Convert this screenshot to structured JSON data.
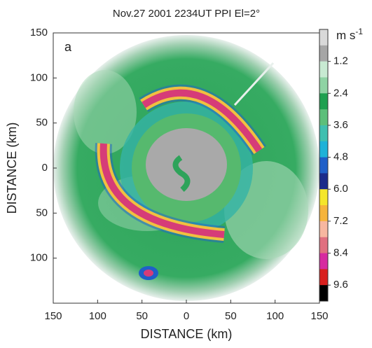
{
  "chart_data": {
    "type": "ppi",
    "title": "Nov.27  2001   2234UT     PPI   El=2°",
    "panel_label": "a",
    "xlabel": "DISTANCE  (km)",
    "ylabel": "DISTANCE  (km)",
    "xlim": [
      -150,
      150
    ],
    "ylim": [
      -150,
      150
    ],
    "xticks": [
      {
        "value": -150,
        "label": "150"
      },
      {
        "value": -100,
        "label": "100"
      },
      {
        "value": -50,
        "label": "50"
      },
      0,
      50,
      100,
      150
    ],
    "yticks": [
      {
        "value": -100,
        "label": "100"
      },
      {
        "value": -50,
        "label": "50"
      },
      0,
      50,
      100,
      150
    ],
    "colorbar": {
      "unit": "m s",
      "unit_exponent": "-1",
      "clim": [
        0,
        10.2
      ],
      "colors": [
        "#d9d9d9",
        "#a6a6a6",
        "#c8ead2",
        "#8fd3a4",
        "#1fa050",
        "#5cbf7a",
        "#3fbfb0",
        "#1fb2d8",
        "#1f5fc8",
        "#1a2a8a",
        "#f5e62a",
        "#f6b43c",
        "#f7b7a0",
        "#e07080",
        "#d62aa0",
        "#d8201e",
        "#000000"
      ],
      "ticks": [
        1.2,
        2.4,
        3.6,
        4.8,
        {
          "value": 6.0,
          "label": "6.0"
        },
        7.2,
        8.4,
        9.6
      ]
    }
  }
}
